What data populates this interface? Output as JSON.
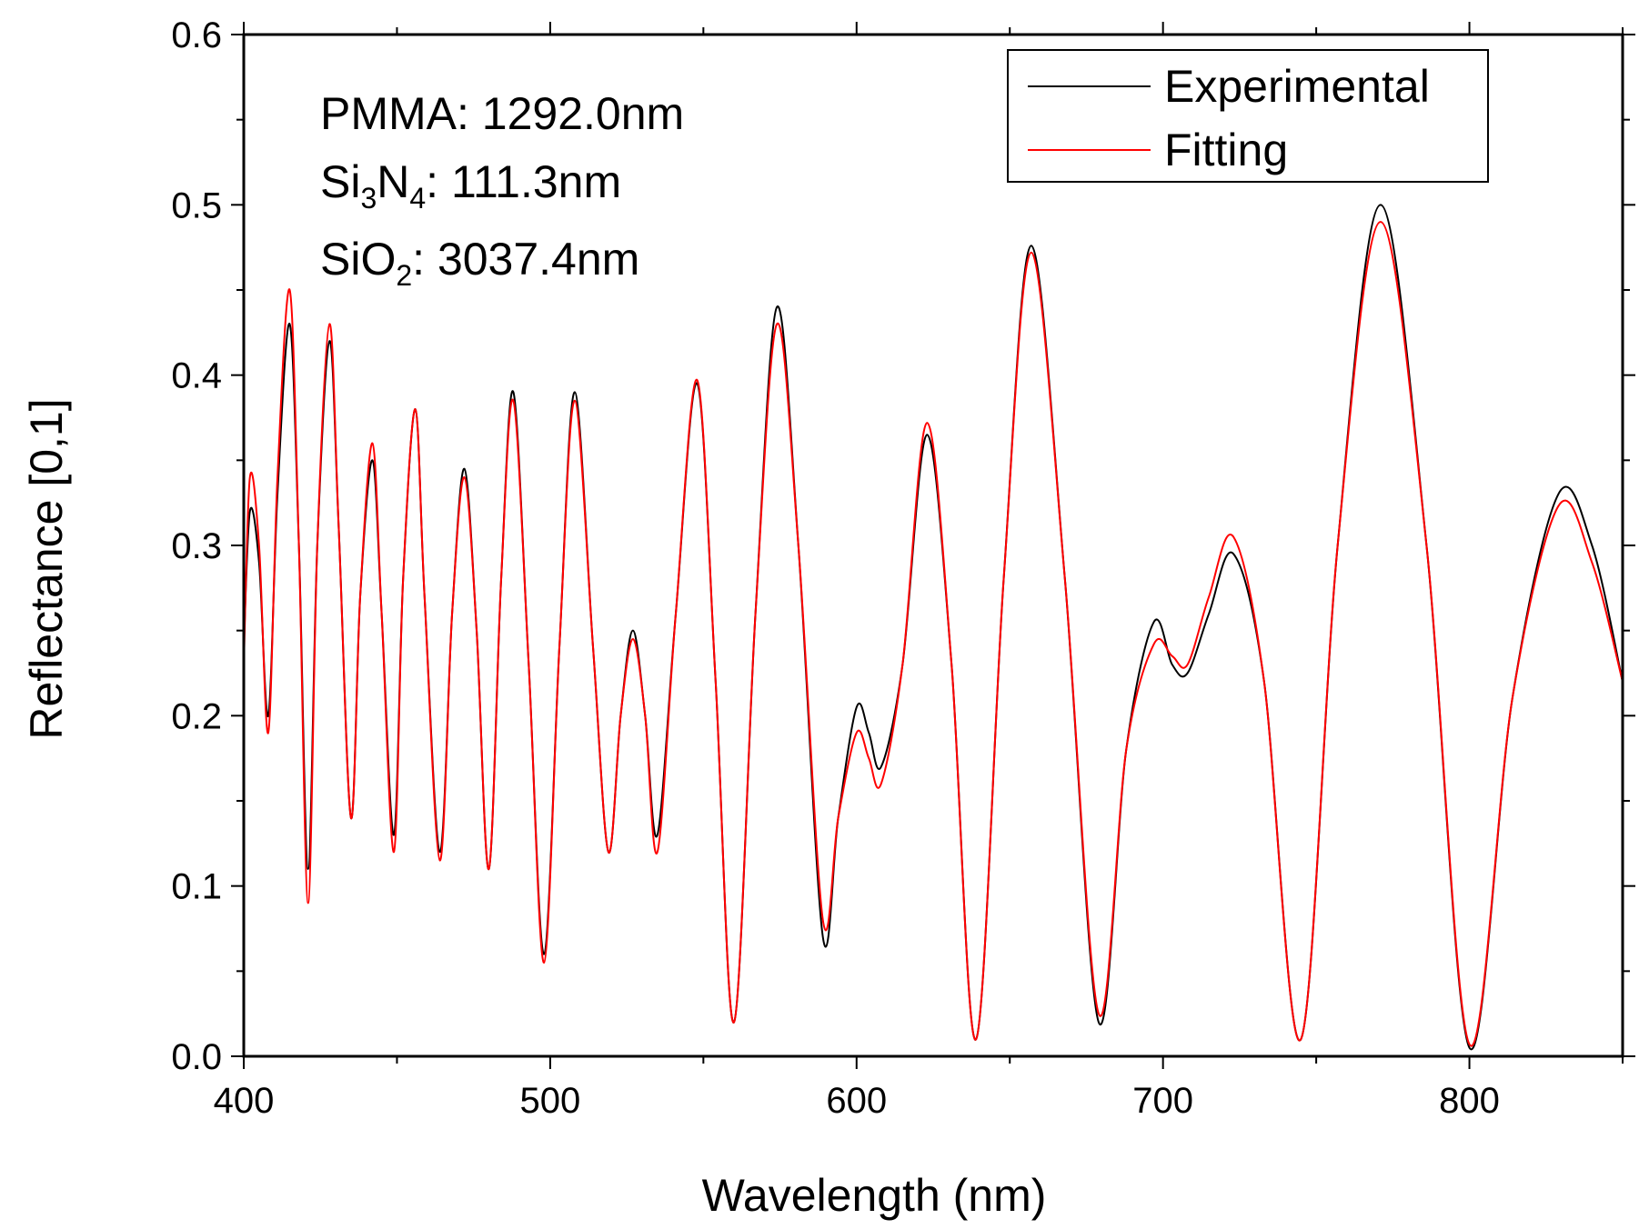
{
  "chart_data": {
    "type": "line",
    "title": "",
    "xlabel": "Wavelength (nm)",
    "ylabel": "Reflectance [0,1]",
    "xlim": [
      400,
      850
    ],
    "ylim": [
      0.0,
      0.6
    ],
    "xticks": [
      400,
      500,
      600,
      700,
      800
    ],
    "xtick_labels": [
      "400",
      "500",
      "600",
      "700",
      "800"
    ],
    "yticks": [
      0.0,
      0.1,
      0.2,
      0.3,
      0.4,
      0.5,
      0.6
    ],
    "ytick_labels": [
      "0.0",
      "0.1",
      "0.2",
      "0.3",
      "0.4",
      "0.5",
      "0.6"
    ],
    "grid": false,
    "legend_position": "top-right",
    "annotations": [
      {
        "base": "PMMA",
        "subscripts": [],
        "value": ": 1292.0nm"
      },
      {
        "base": "Si",
        "sub1": "3",
        "mid": "N",
        "sub2": "4",
        "value": ": 111.3nm"
      },
      {
        "base": "SiO",
        "sub1": "2",
        "value": ": 3037.4nm"
      }
    ],
    "series": [
      {
        "name": "Experimental",
        "color": "#000000",
        "x": [
          400,
          402,
          405,
          408,
          411,
          415,
          418,
          421,
          424,
          428,
          431,
          435,
          438,
          442,
          445,
          449,
          452,
          456,
          459,
          464,
          468,
          472,
          476,
          480,
          484,
          488,
          493,
          498,
          503,
          508,
          514,
          519,
          523,
          527,
          531,
          535,
          541,
          548,
          554,
          560,
          567,
          574,
          581,
          589,
          594,
          600,
          604,
          608,
          615,
          623,
          631,
          639,
          648,
          657,
          668,
          679,
          688,
          697,
          703,
          708,
          715,
          723,
          733,
          745,
          757,
          771,
          786,
          800,
          814,
          829,
          840,
          850
        ],
        "y": [
          0.24,
          0.32,
          0.29,
          0.2,
          0.33,
          0.43,
          0.3,
          0.11,
          0.3,
          0.42,
          0.31,
          0.14,
          0.27,
          0.35,
          0.26,
          0.13,
          0.28,
          0.38,
          0.27,
          0.12,
          0.26,
          0.345,
          0.25,
          0.11,
          0.28,
          0.39,
          0.23,
          0.06,
          0.24,
          0.39,
          0.24,
          0.12,
          0.2,
          0.25,
          0.2,
          0.13,
          0.26,
          0.395,
          0.22,
          0.02,
          0.26,
          0.44,
          0.3,
          0.07,
          0.14,
          0.205,
          0.19,
          0.17,
          0.23,
          0.365,
          0.23,
          0.01,
          0.28,
          0.476,
          0.28,
          0.02,
          0.18,
          0.255,
          0.23,
          0.225,
          0.26,
          0.295,
          0.22,
          0.01,
          0.3,
          0.5,
          0.3,
          0.005,
          0.21,
          0.33,
          0.3,
          0.22
        ]
      },
      {
        "name": "Fitting",
        "color": "#ff0000",
        "x": [
          400,
          402,
          405,
          408,
          411,
          415,
          418,
          421,
          424,
          428,
          431,
          435,
          438,
          442,
          445,
          449,
          452,
          456,
          459,
          464,
          468,
          472,
          476,
          480,
          484,
          488,
          493,
          498,
          503,
          508,
          514,
          519,
          523,
          527,
          531,
          535,
          541,
          548,
          554,
          560,
          567,
          574,
          581,
          589,
          594,
          600,
          604,
          608,
          615,
          623,
          631,
          639,
          648,
          657,
          668,
          679,
          688,
          697,
          703,
          708,
          715,
          723,
          733,
          745,
          757,
          771,
          786,
          800,
          814,
          829,
          840,
          850
        ],
        "y": [
          0.23,
          0.34,
          0.3,
          0.19,
          0.34,
          0.45,
          0.3,
          0.09,
          0.3,
          0.43,
          0.31,
          0.14,
          0.27,
          0.36,
          0.26,
          0.12,
          0.28,
          0.38,
          0.27,
          0.115,
          0.26,
          0.34,
          0.25,
          0.11,
          0.28,
          0.385,
          0.23,
          0.055,
          0.24,
          0.385,
          0.24,
          0.12,
          0.2,
          0.245,
          0.2,
          0.12,
          0.26,
          0.397,
          0.22,
          0.02,
          0.26,
          0.43,
          0.3,
          0.08,
          0.14,
          0.19,
          0.175,
          0.16,
          0.23,
          0.372,
          0.23,
          0.01,
          0.28,
          0.472,
          0.28,
          0.025,
          0.18,
          0.242,
          0.235,
          0.23,
          0.27,
          0.305,
          0.22,
          0.01,
          0.3,
          0.49,
          0.3,
          0.007,
          0.21,
          0.323,
          0.29,
          0.22
        ]
      }
    ]
  }
}
